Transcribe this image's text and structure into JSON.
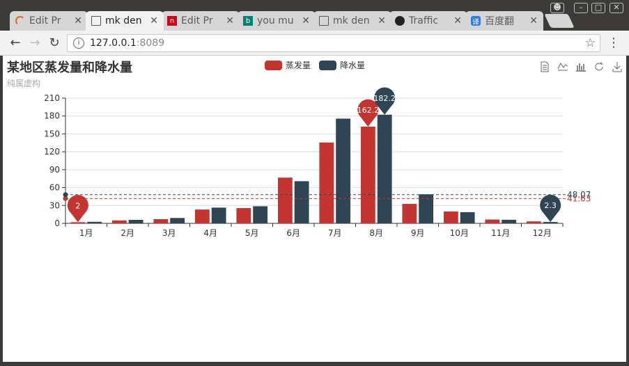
{
  "browser": {
    "tabs": [
      {
        "title": "Edit Pr",
        "icon": "loading-icon",
        "active": false
      },
      {
        "title": "mk den",
        "icon": "document-icon",
        "active": true
      },
      {
        "title": "Edit Pr",
        "icon": "netease-icon",
        "active": false
      },
      {
        "title": "you mu",
        "icon": "bing-icon",
        "active": false
      },
      {
        "title": "mk den",
        "icon": "document-icon",
        "active": false
      },
      {
        "title": "Traffic",
        "icon": "github-icon",
        "active": false
      },
      {
        "title": "百度翻",
        "icon": "baidu-translate-icon",
        "active": false
      }
    ],
    "url_host": "127.0.0.1",
    "url_port": ":8089"
  },
  "chart_data": {
    "type": "bar",
    "title": "某地区蒸发量和降水量",
    "subtitle": "纯属虚构",
    "categories": [
      "1月",
      "2月",
      "3月",
      "4月",
      "5月",
      "6月",
      "7月",
      "8月",
      "9月",
      "10月",
      "11月",
      "12月"
    ],
    "series": [
      {
        "name": "蒸发量",
        "color": "#c23531",
        "values": [
          2.0,
          4.9,
          7.0,
          23.2,
          25.6,
          76.7,
          135.6,
          162.2,
          32.6,
          20.0,
          6.4,
          3.3
        ]
      },
      {
        "name": "降水量",
        "color": "#2f4554",
        "values": [
          2.6,
          5.9,
          9.0,
          26.4,
          28.7,
          70.7,
          175.6,
          182.2,
          48.7,
          18.8,
          6.0,
          2.3
        ]
      }
    ],
    "ylim": [
      0,
      210
    ],
    "yticks": [
      0,
      30,
      60,
      90,
      120,
      150,
      180,
      210
    ],
    "grid": true,
    "legend_position": "top-center",
    "mark_points": [
      {
        "series": 0,
        "category": 7,
        "label": "162.2"
      },
      {
        "series": 0,
        "category": 0,
        "label": "2"
      },
      {
        "series": 1,
        "category": 7,
        "label": "182.2"
      },
      {
        "series": 1,
        "category": 11,
        "label": "2.3"
      }
    ],
    "mark_lines": [
      {
        "series": 0,
        "label": "41.63",
        "value": 41.63
      },
      {
        "series": 1,
        "label": "48.07",
        "value": 48.07
      }
    ]
  }
}
